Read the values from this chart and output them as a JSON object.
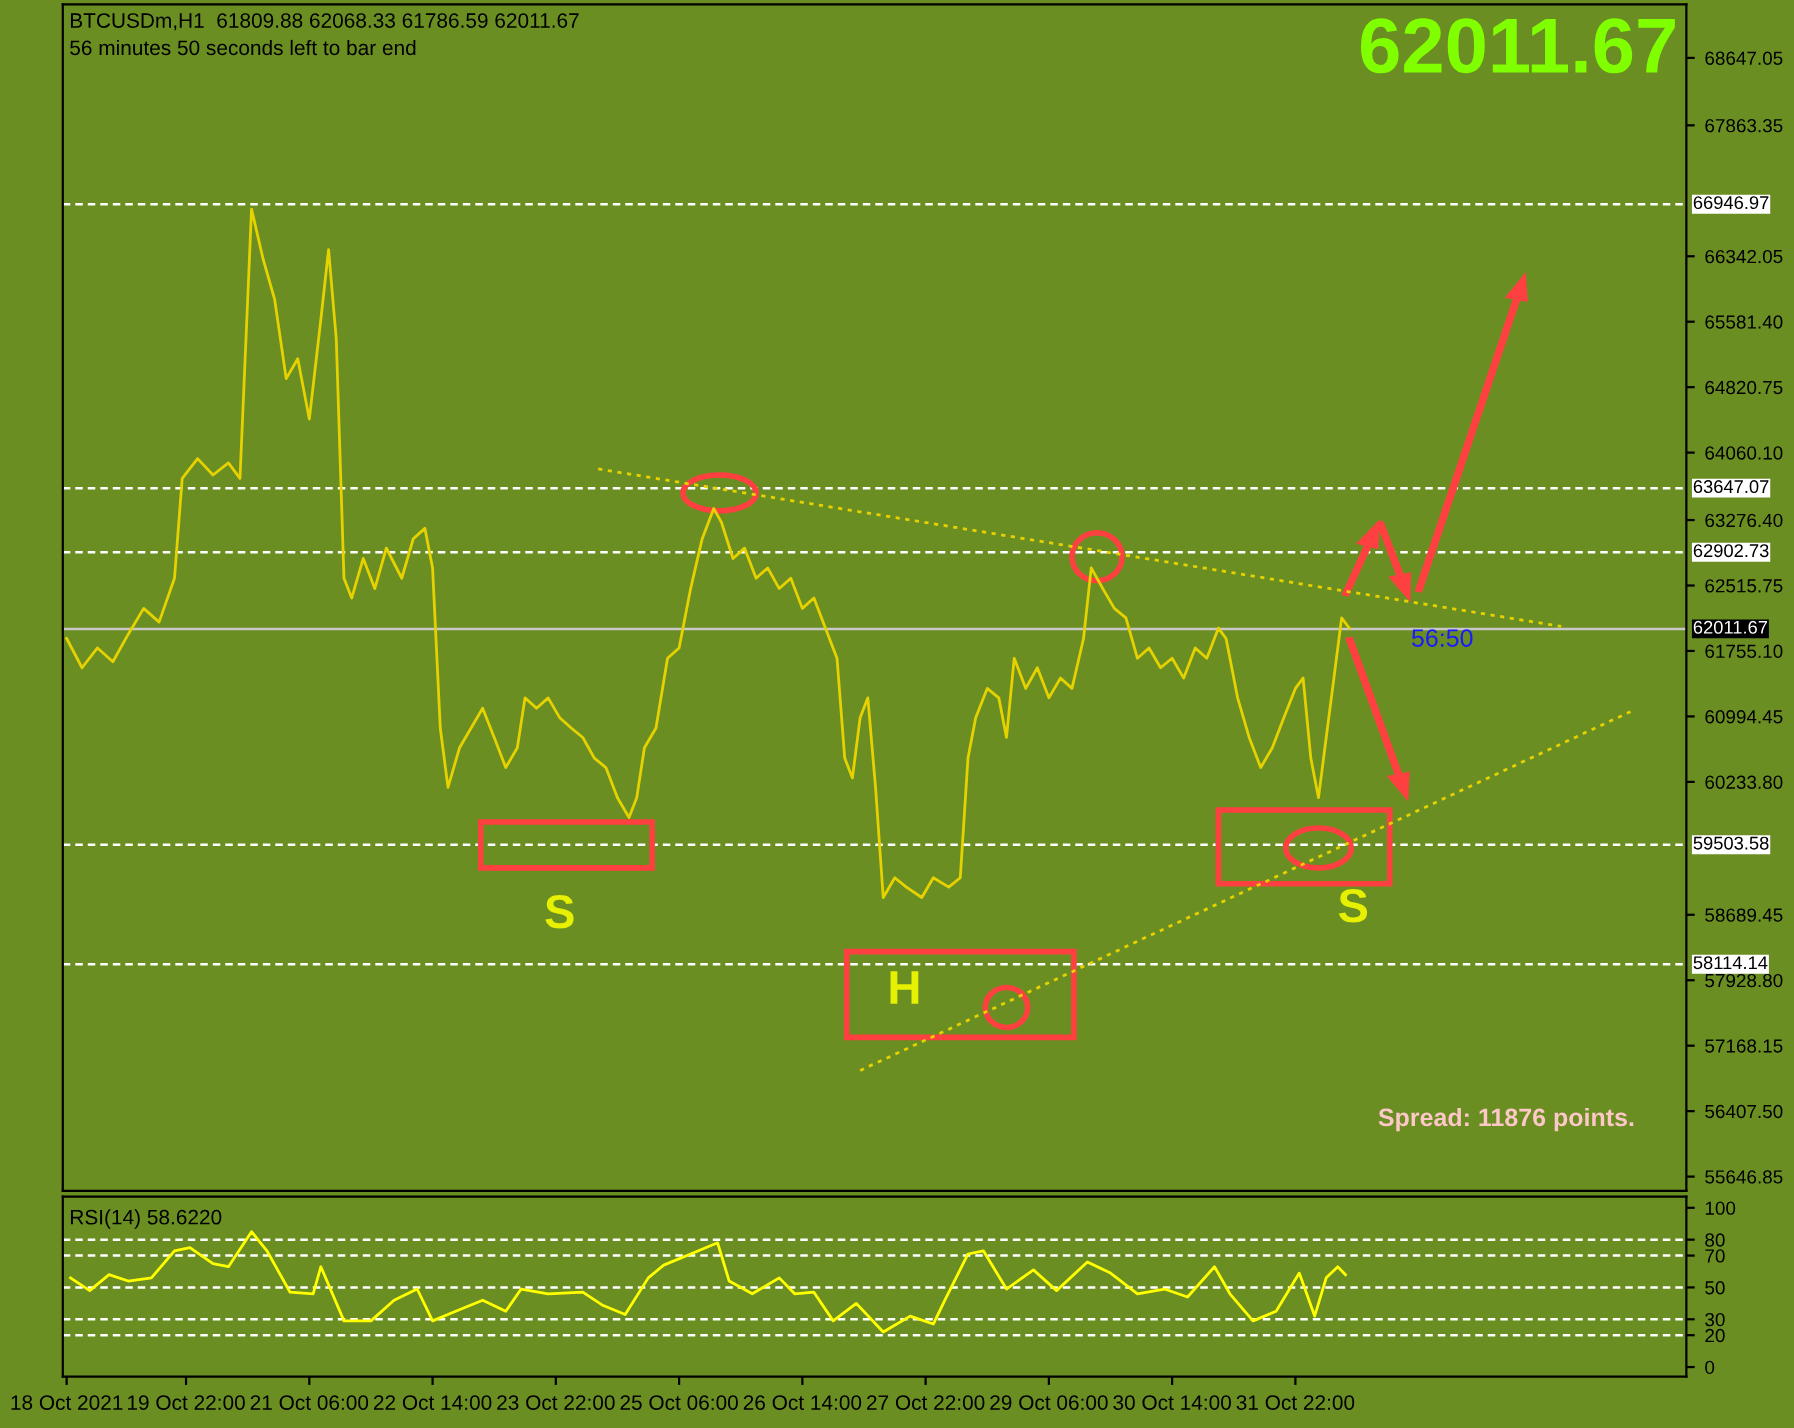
{
  "chart_data": [
    {
      "type": "line",
      "tick_labels": "y",
      "grid": false,
      "annotations": [
        "BTCUSDm,H1  61809.88 62068.33 61786.59 62011.67",
        "56 minutes 50 seconds left to bar end",
        "62011.67",
        "Spread: 11876 points.",
        "S",
        "H",
        "S",
        "56:50"
      ],
      "xlim": [
        "2021-10-18T14:00",
        "2021-11-05T03:30"
      ],
      "ylim": [
        55480,
        69270
      ],
      "yticks": [
        68647.05,
        67863.35,
        66342.05,
        {
          "value": 65581.4,
          "label": "65581.40"
        },
        64820.75,
        {
          "value": 64060.1,
          "label": "64060.10"
        },
        {
          "value": 63276.4,
          "label": "63276.40"
        },
        62515.75,
        {
          "value": 61755.1,
          "label": "61755.10"
        },
        60994.45,
        {
          "value": 60233.8,
          "label": "60233.80"
        },
        58689.45,
        {
          "value": 57928.8,
          "label": "57928.80"
        },
        57168.15,
        {
          "value": 56407.5,
          "label": "56407.50"
        },
        55646.85
      ],
      "ref_lines": [
        {
          "axis": "y",
          "value": 66946.97,
          "label": "66946.97",
          "color": "#ffffff",
          "line_style": "dashed"
        },
        {
          "axis": "y",
          "value": 63647.07,
          "label": "63647.07",
          "color": "#ffffff",
          "line_style": "dashed"
        },
        {
          "axis": "y",
          "value": 62902.73,
          "label": "62902.73",
          "color": "#ffffff",
          "line_style": "dashed"
        },
        {
          "axis": "y",
          "value": 62011.67,
          "label": "62011.67",
          "color": "#c8c8c8",
          "line_style": "solid"
        },
        {
          "axis": "y",
          "value": 59503.58,
          "label": "59503.58",
          "color": "#ffffff",
          "line_style": "dashed"
        },
        {
          "axis": "y",
          "value": 58114.14,
          "label": "58114.14",
          "color": "#ffffff",
          "line_style": "dashed"
        }
      ],
      "series": [
        {
          "color": "#e6d200",
          "line_style": "solid",
          "x": [
            "2021-10-18T15:00",
            "2021-10-18T19:00",
            "2021-10-18T23:00",
            "2021-10-19T03:00",
            "2021-10-19T07:00",
            "2021-10-19T11:00",
            "2021-10-19T15:00",
            "2021-10-19T19:00",
            "2021-10-19T21:00",
            "2021-10-20T01:00",
            "2021-10-20T05:00",
            "2021-10-20T09:00",
            "2021-10-20T12:00",
            "2021-10-20T14:00",
            "2021-10-20T15:00",
            "2021-10-20T18:00",
            "2021-10-20T21:00",
            "2021-10-21T00:00",
            "2021-10-21T03:00",
            "2021-10-21T06:00",
            "2021-10-21T09:00",
            "2021-10-21T11:00",
            "2021-10-21T13:00",
            "2021-10-21T15:00",
            "2021-10-21T17:00",
            "2021-10-21T20:00",
            "2021-10-21T23:00",
            "2021-10-22T02:00",
            "2021-10-22T06:00",
            "2021-10-22T09:00",
            "2021-10-22T12:00",
            "2021-10-22T14:00",
            "2021-10-22T16:00",
            "2021-10-22T18:00",
            "2021-10-22T21:00",
            "2021-10-23T00:00",
            "2021-10-23T03:00",
            "2021-10-23T06:00",
            "2021-10-23T09:00",
            "2021-10-23T12:00",
            "2021-10-23T14:00",
            "2021-10-23T17:00",
            "2021-10-23T20:00",
            "2021-10-23T23:00",
            "2021-10-24T02:00",
            "2021-10-24T05:00",
            "2021-10-24T08:00",
            "2021-10-24T11:00",
            "2021-10-24T14:00",
            "2021-10-24T17:00",
            "2021-10-24T19:00",
            "2021-10-24T21:00",
            "2021-10-25T00:00",
            "2021-10-25T03:00",
            "2021-10-25T06:00",
            "2021-10-25T09:00",
            "2021-10-25T12:00",
            "2021-10-25T15:00",
            "2021-10-25T17:00",
            "2021-10-25T20:00",
            "2021-10-25T23:00",
            "2021-10-26T02:00",
            "2021-10-26T05:00",
            "2021-10-26T08:00",
            "2021-10-26T11:00",
            "2021-10-26T14:00",
            "2021-10-26T17:00",
            "2021-10-26T20:00",
            "2021-10-26T23:00",
            "2021-10-27T01:00",
            "2021-10-27T03:00",
            "2021-10-27T05:00",
            "2021-10-27T07:00",
            "2021-10-27T09:00",
            "2021-10-27T11:00",
            "2021-10-27T14:00",
            "2021-10-27T17:00",
            "2021-10-27T21:00",
            "2021-10-28T00:00",
            "2021-10-28T04:00",
            "2021-10-28T07:00",
            "2021-10-28T09:00",
            "2021-10-28T11:00",
            "2021-10-28T14:00",
            "2021-10-28T17:00",
            "2021-10-28T19:00",
            "2021-10-28T21:00",
            "2021-10-29T00:00",
            "2021-10-29T03:00",
            "2021-10-29T06:00",
            "2021-10-29T09:00",
            "2021-10-29T12:00",
            "2021-10-29T15:00",
            "2021-10-29T17:00",
            "2021-10-29T20:00",
            "2021-10-29T23:00",
            "2021-10-30T02:00",
            "2021-10-30T05:00",
            "2021-10-30T08:00",
            "2021-10-30T11:00",
            "2021-10-30T14:00",
            "2021-10-30T17:00",
            "2021-10-30T20:00",
            "2021-10-30T23:00",
            "2021-10-31T02:00",
            "2021-10-31T04:00",
            "2021-10-31T07:00",
            "2021-10-31T10:00",
            "2021-10-31T13:00",
            "2021-10-31T16:00",
            "2021-10-31T19:00",
            "2021-10-31T22:00",
            "2021-11-01T00:00",
            "2021-11-01T02:00",
            "2021-11-01T04:00",
            "2021-11-01T06:00",
            "2021-11-01T08:00",
            "2021-11-01T10:00",
            "2021-11-01T12:00"
          ],
          "values": [
            61900,
            61560,
            61790,
            61630,
            61950,
            62250,
            62090,
            62600,
            63760,
            63990,
            63800,
            63940,
            63760,
            65840,
            66890,
            66310,
            65840,
            64920,
            65150,
            64450,
            65610,
            66420,
            65380,
            62600,
            62370,
            62830,
            62480,
            62950,
            62600,
            63060,
            63180,
            62720,
            60860,
            60170,
            60630,
            60860,
            61090,
            60750,
            60400,
            60630,
            61210,
            61090,
            61210,
            60980,
            60860,
            60750,
            60510,
            60400,
            60050,
            59820,
            60050,
            60630,
            60860,
            61670,
            61790,
            62480,
            63060,
            63410,
            63250,
            62830,
            62950,
            62600,
            62720,
            62480,
            62600,
            62250,
            62370,
            62020,
            61670,
            60510,
            60280,
            60980,
            61210,
            60170,
            58890,
            59120,
            59010,
            58890,
            59120,
            59010,
            59120,
            60510,
            60980,
            61320,
            61210,
            60750,
            61670,
            61320,
            61560,
            61210,
            61440,
            61320,
            61900,
            62720,
            62480,
            62250,
            62140,
            61670,
            61790,
            61560,
            61670,
            61440,
            61790,
            61670,
            62020,
            61900,
            61210,
            60750,
            60400,
            60630,
            60980,
            61320,
            61440,
            60510,
            60050,
            60750,
            61440,
            62140,
            62020
          ]
        },
        {
          "type": "line",
          "color": "#e6d200",
          "line_style": "dotted",
          "x": [
            "2021-10-24T09:00",
            "2021-11-03T19:00"
          ],
          "values": [
            63870,
            62040
          ]
        },
        {
          "type": "line",
          "color": "#e6d200",
          "line_style": "dotted",
          "x": [
            "2021-10-27T05:00",
            "2021-11-04T13:00"
          ],
          "values": [
            56880,
            61050
          ]
        }
      ]
    },
    {
      "type": "line",
      "title": "RSI(14) 58.6220",
      "tick_labels": "xy",
      "grid": false,
      "xlim": [
        "2021-10-18T14:00",
        "2021-11-05T03:30"
      ],
      "ylim": [
        -6,
        107
      ],
      "yticks": [
        100,
        80,
        70,
        50,
        30,
        20,
        0
      ],
      "xticks": [
        {
          "value": "2021-10-18T15:00",
          "label": "18 Oct 2021"
        },
        {
          "value": "2021-10-19T22:00",
          "label": "19 Oct 22:00"
        },
        {
          "value": "2021-10-21T06:00",
          "label": "21 Oct 06:00"
        },
        {
          "value": "2021-10-22T14:00",
          "label": "22 Oct 14:00"
        },
        {
          "value": "2021-10-23T22:00",
          "label": "23 Oct 22:00"
        },
        {
          "value": "2021-10-25T06:00",
          "label": "25 Oct 06:00"
        },
        {
          "value": "2021-10-26T14:00",
          "label": "26 Oct 14:00"
        },
        {
          "value": "2021-10-27T22:00",
          "label": "27 Oct 22:00"
        },
        {
          "value": "2021-10-29T06:00",
          "label": "29 Oct 06:00"
        },
        {
          "value": "2021-10-30T14:00",
          "label": "30 Oct 14:00"
        },
        {
          "value": "2021-10-31T22:00",
          "label": "31 Oct 22:00"
        }
      ],
      "ref_lines": [
        {
          "axis": "y",
          "value": 80,
          "color": "#ffffff",
          "line_style": "dashed"
        },
        {
          "axis": "y",
          "value": 70,
          "color": "#ffffff",
          "line_style": "dashed"
        },
        {
          "axis": "y",
          "value": 50,
          "color": "#ffffff",
          "line_style": "dashed"
        },
        {
          "axis": "y",
          "value": 30,
          "color": "#ffffff",
          "line_style": "dashed"
        },
        {
          "axis": "y",
          "value": 20,
          "color": "#ffffff",
          "line_style": "dashed"
        }
      ],
      "series": [
        {
          "color": "#ffff00",
          "line_style": "solid",
          "x": [
            "2021-10-18T16:00",
            "2021-10-18T21:00",
            "2021-10-19T02:00",
            "2021-10-19T07:00",
            "2021-10-19T13:00",
            "2021-10-19T19:00",
            "2021-10-19T23:00",
            "2021-10-20T05:00",
            "2021-10-20T09:00",
            "2021-10-20T15:00",
            "2021-10-20T19:00",
            "2021-10-21T01:00",
            "2021-10-21T07:00",
            "2021-10-21T09:00",
            "2021-10-21T15:00",
            "2021-10-21T22:00",
            "2021-10-22T04:00",
            "2021-10-22T10:00",
            "2021-10-22T14:00",
            "2021-10-22T20:00",
            "2021-10-23T03:00",
            "2021-10-23T09:00",
            "2021-10-23T13:00",
            "2021-10-23T20:00",
            "2021-10-24T05:00",
            "2021-10-24T10:00",
            "2021-10-24T16:00",
            "2021-10-24T22:00",
            "2021-10-25T02:00",
            "2021-10-25T09:00",
            "2021-10-25T16:00",
            "2021-10-25T19:00",
            "2021-10-26T01:00",
            "2021-10-26T08:00",
            "2021-10-26T12:00",
            "2021-10-26T17:00",
            "2021-10-26T22:00",
            "2021-10-27T04:00",
            "2021-10-27T11:00",
            "2021-10-27T18:00",
            "2021-10-28T00:00",
            "2021-10-28T03:00",
            "2021-10-28T09:00",
            "2021-10-28T13:00",
            "2021-10-28T19:00",
            "2021-10-29T02:00",
            "2021-10-29T08:00",
            "2021-10-29T16:00",
            "2021-10-29T22:00",
            "2021-10-30T05:00",
            "2021-10-30T12:00",
            "2021-10-30T18:00",
            "2021-10-31T01:00",
            "2021-10-31T05:00",
            "2021-10-31T11:00",
            "2021-10-31T17:00",
            "2021-10-31T23:00",
            "2021-11-01T03:00",
            "2021-11-01T06:00",
            "2021-11-01T09:00",
            "2021-11-01T11:00"
          ],
          "values": [
            56,
            48,
            58,
            54,
            56,
            73,
            75,
            65,
            63,
            85,
            73,
            47,
            46,
            63,
            29,
            29,
            42,
            49,
            29,
            35,
            42,
            35,
            49,
            46,
            47,
            39,
            33,
            56,
            64,
            71,
            78,
            54,
            46,
            56,
            46,
            47,
            29,
            40,
            22,
            32,
            27,
            42,
            71,
            73,
            49,
            61,
            48,
            66,
            59,
            46,
            49,
            44,
            63,
            46,
            29,
            35,
            59,
            32,
            56,
            63,
            58
          ]
        }
      ]
    }
  ]
}
